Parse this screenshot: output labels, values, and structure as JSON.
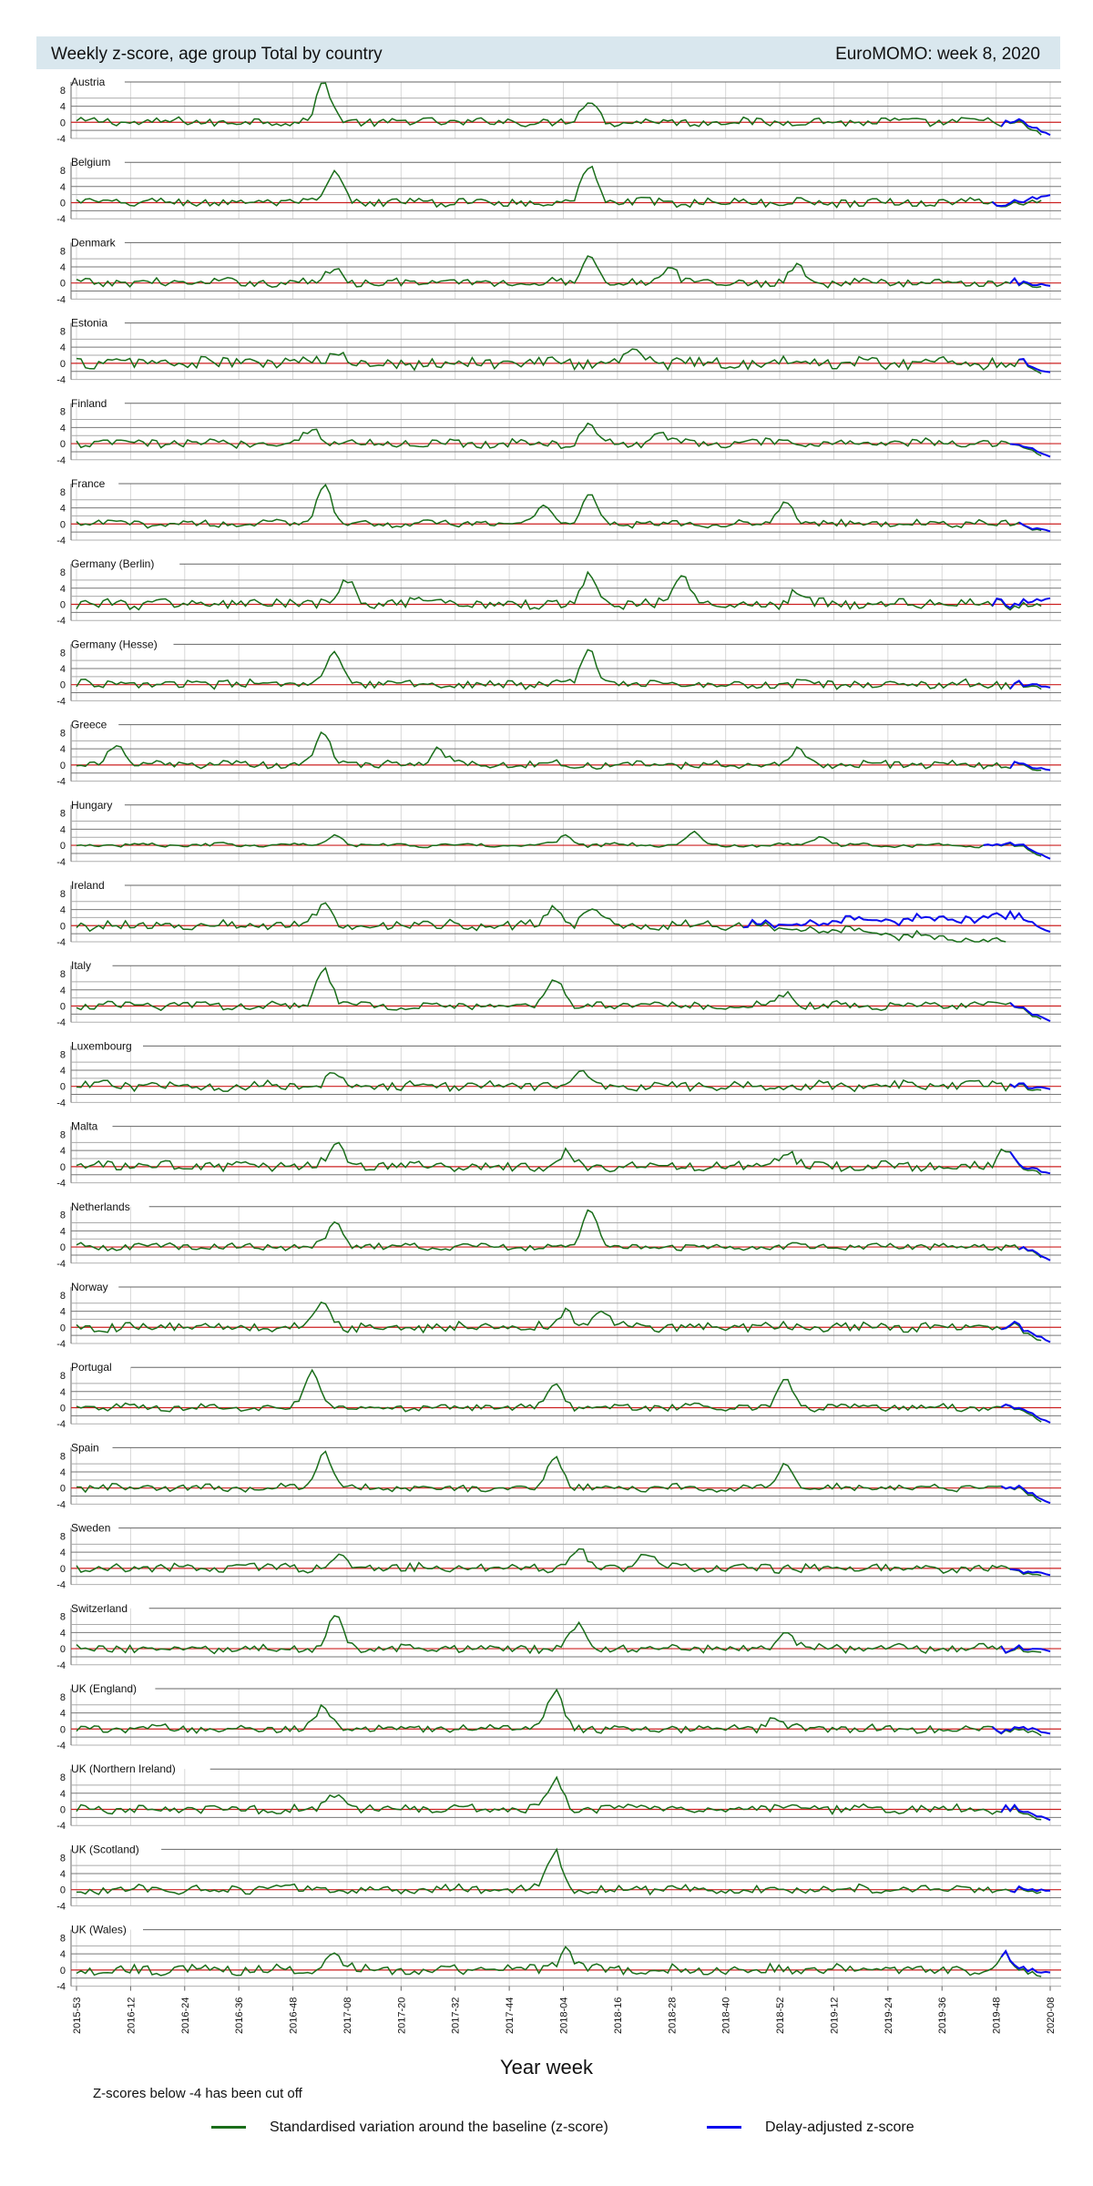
{
  "header": {
    "title": "Weekly z-score, age group Total by country",
    "source": "EuroMOMO: week 8, 2020"
  },
  "colors": {
    "zscore": "#1a6e1a",
    "delay_adjusted": "#0a0aee",
    "baseline": "#cc2020",
    "threshold": "#666666",
    "header_bg": "#d9e7ee"
  },
  "chart_data": {
    "type": "line",
    "panel_type": "small-multiples",
    "ylabel_ticks": [
      "8",
      "4",
      "0",
      "-4"
    ],
    "y_ticks": [
      8,
      4,
      0,
      -4
    ],
    "ylim": [
      -4,
      10
    ],
    "xlabel": "Year week",
    "x_ticks": [
      "2015-53",
      "2016-12",
      "2016-24",
      "2016-36",
      "2016-48",
      "2017-08",
      "2017-20",
      "2017-32",
      "2017-44",
      "2018-04",
      "2018-16",
      "2018-28",
      "2018-40",
      "2018-52",
      "2019-12",
      "2019-24",
      "2019-36",
      "2019-48",
      "2020-08"
    ],
    "grid": true,
    "legend_position": "bottom",
    "series_legend": [
      {
        "name": "Standardised variation around the baseline (z-score)",
        "color": "#1a6e1a"
      },
      {
        "name": "Delay-adjusted z-score",
        "color": "#0a0aee"
      }
    ],
    "panels": [
      {
        "country": "Austria",
        "peaks": [
          [
            2017.05,
            9.5
          ],
          [
            2018.2,
            5.5
          ]
        ],
        "noise": 1.0,
        "tail": -3.5,
        "blue_len": 12
      },
      {
        "country": "Belgium",
        "peaks": [
          [
            2017.1,
            7.0
          ],
          [
            2018.2,
            9.0
          ]
        ],
        "noise": 1.0,
        "tail": 1.5,
        "blue_len": 14
      },
      {
        "country": "Denmark",
        "peaks": [
          [
            2017.1,
            4.0
          ],
          [
            2018.2,
            7.0
          ],
          [
            2018.55,
            3.5
          ],
          [
            2019.1,
            4.0
          ]
        ],
        "noise": 1.0,
        "tail": -1.0,
        "blue_len": 10
      },
      {
        "country": "Estonia",
        "peaks": [
          [
            2017.1,
            2.5
          ],
          [
            2018.4,
            3.5
          ]
        ],
        "noise": 1.5,
        "tail": -2.5,
        "blue_len": 8
      },
      {
        "country": "Finland",
        "peaks": [
          [
            2017.0,
            4.0
          ],
          [
            2018.2,
            4.0
          ],
          [
            2018.5,
            3.0
          ]
        ],
        "noise": 1.0,
        "tail": -3.5,
        "blue_len": 10
      },
      {
        "country": "France",
        "peaks": [
          [
            2017.05,
            10.0
          ],
          [
            2018.0,
            5.0
          ],
          [
            2018.2,
            7.5
          ],
          [
            2019.05,
            5.5
          ]
        ],
        "noise": 0.8,
        "tail": -2.0,
        "blue_len": 8
      },
      {
        "country": "Germany (Berlin)",
        "peaks": [
          [
            2017.15,
            5.5
          ],
          [
            2018.2,
            8.0
          ],
          [
            2018.6,
            6.5
          ],
          [
            2019.1,
            3.5
          ]
        ],
        "noise": 1.3,
        "tail": 1.0,
        "blue_len": 14
      },
      {
        "country": "Germany (Hesse)",
        "peaks": [
          [
            2017.1,
            7.5
          ],
          [
            2018.2,
            8.5
          ]
        ],
        "noise": 1.0,
        "tail": -1.0,
        "blue_len": 10
      },
      {
        "country": "Greece",
        "peaks": [
          [
            2016.15,
            5.0
          ],
          [
            2017.05,
            8.0
          ],
          [
            2017.55,
            4.0
          ],
          [
            2019.1,
            3.5
          ]
        ],
        "noise": 0.9,
        "tail": -1.5,
        "blue_len": 10
      },
      {
        "country": "Hungary",
        "peaks": [
          [
            2017.1,
            3.0
          ],
          [
            2018.1,
            2.5
          ],
          [
            2018.65,
            3.0
          ],
          [
            2019.2,
            2.5
          ]
        ],
        "noise": 0.4,
        "tail": -3.5,
        "blue_len": 16
      },
      {
        "country": "Ireland",
        "peaks": [
          [
            2017.05,
            6.0
          ],
          [
            2018.05,
            5.0
          ],
          [
            2018.2,
            4.0
          ]
        ],
        "noise": 1.2,
        "tail": -4.0,
        "blue_len": 70
      },
      {
        "country": "Italy",
        "peaks": [
          [
            2017.05,
            9.5
          ],
          [
            2018.05,
            7.0
          ],
          [
            2019.05,
            3.0
          ]
        ],
        "noise": 0.9,
        "tail": -4.0,
        "blue_len": 10
      },
      {
        "country": "Luxembourg",
        "peaks": [
          [
            2017.1,
            3.5
          ],
          [
            2018.15,
            3.5
          ]
        ],
        "noise": 1.1,
        "tail": -1.0,
        "blue_len": 10
      },
      {
        "country": "Malta",
        "peaks": [
          [
            2017.1,
            5.0
          ],
          [
            2018.1,
            3.5
          ],
          [
            2019.05,
            4.0
          ],
          [
            2020.0,
            4.0
          ]
        ],
        "noise": 1.2,
        "tail": -2.0,
        "blue_len": 10
      },
      {
        "country": "Netherlands",
        "peaks": [
          [
            2017.1,
            5.5
          ],
          [
            2018.2,
            10.0
          ]
        ],
        "noise": 0.8,
        "tail": -3.5,
        "blue_len": 8
      },
      {
        "country": "Norway",
        "peaks": [
          [
            2017.05,
            6.0
          ],
          [
            2018.1,
            4.0
          ],
          [
            2018.25,
            4.0
          ]
        ],
        "noise": 1.1,
        "tail": -4.0,
        "blue_len": 12
      },
      {
        "country": "Portugal",
        "peaks": [
          [
            2017.0,
            9.0
          ],
          [
            2018.05,
            6.0
          ],
          [
            2019.05,
            6.5
          ]
        ],
        "noise": 0.8,
        "tail": -4.0,
        "blue_len": 12
      },
      {
        "country": "Spain",
        "peaks": [
          [
            2017.05,
            9.0
          ],
          [
            2018.05,
            8.0
          ],
          [
            2019.05,
            6.0
          ]
        ],
        "noise": 0.8,
        "tail": -4.0,
        "blue_len": 12
      },
      {
        "country": "Sweden",
        "peaks": [
          [
            2017.1,
            3.0
          ],
          [
            2018.15,
            5.0
          ],
          [
            2018.45,
            4.0
          ]
        ],
        "noise": 1.1,
        "tail": -2.0,
        "blue_len": 10
      },
      {
        "country": "Switzerland",
        "peaks": [
          [
            2017.1,
            8.0
          ],
          [
            2018.15,
            6.0
          ],
          [
            2019.05,
            4.0
          ]
        ],
        "noise": 1.0,
        "tail": -1.0,
        "blue_len": 12
      },
      {
        "country": "UK (England)",
        "peaks": [
          [
            2017.05,
            5.0
          ],
          [
            2018.05,
            9.0
          ],
          [
            2019.0,
            3.0
          ]
        ],
        "noise": 0.9,
        "tail": -1.5,
        "blue_len": 14
      },
      {
        "country": "UK (Northern Ireland)",
        "peaks": [
          [
            2017.1,
            4.0
          ],
          [
            2018.05,
            7.0
          ]
        ],
        "noise": 1.0,
        "tail": -3.0,
        "blue_len": 12
      },
      {
        "country": "UK (Scotland)",
        "peaks": [
          [
            2018.05,
            9.5
          ]
        ],
        "noise": 1.0,
        "tail": -0.5,
        "blue_len": 10
      },
      {
        "country": "UK (Wales)",
        "peaks": [
          [
            2017.1,
            4.0
          ],
          [
            2018.1,
            5.0
          ],
          [
            2020.0,
            3.5
          ]
        ],
        "noise": 1.2,
        "tail": -1.0,
        "blue_len": 12
      }
    ]
  },
  "note": "Z-scores below -4 has been cut off"
}
